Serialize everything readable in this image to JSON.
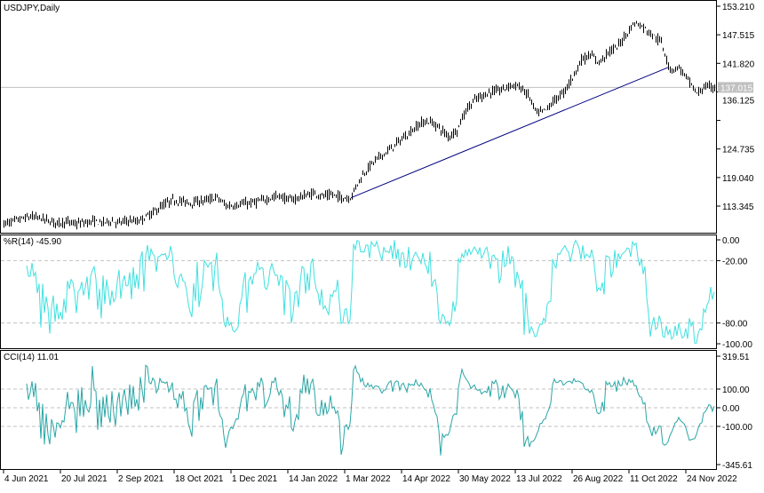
{
  "symbol_label": "USDJPY,Daily",
  "current_price_label": "137.015",
  "colors": {
    "bars": "#000000",
    "wr": "#40e0e0",
    "cci": "#2aa6a6",
    "trendline": "#000080",
    "price_line": "#c0c0c0",
    "price_tag_bg": "#c0c0c0",
    "grid_dash": "#c0c0c0"
  },
  "chart_data": [
    {
      "type": "bar",
      "subtype": "ohlc",
      "title": "USDJPY,Daily",
      "x_tick_labels": [
        "4 Jun 2021",
        "20 Jul 2021",
        "2 Sep 2021",
        "18 Oct 2021",
        "1 Dec 2021",
        "14 Jan 2022",
        "1 Mar 2022",
        "14 Apr 2022",
        "30 May 2022",
        "13 Jul 2022",
        "26 Aug 2022",
        "11 Oct 2022",
        "24 Nov 2022"
      ],
      "y_tick_labels": [
        "153.210",
        "147.515",
        "141.820",
        "136.125",
        "124.735",
        "119.040",
        "113.345"
      ],
      "y_ticks": [
        153.21,
        147.515,
        141.82,
        136.125,
        130.43,
        124.735,
        119.04,
        113.345
      ],
      "ylim": [
        107.3,
        154.4
      ],
      "weekly_closes": [
        109.8,
        110.3,
        110.8,
        111.2,
        111.0,
        110.4,
        110.0,
        110.2,
        109.8,
        110.0,
        110.3,
        110.0,
        110.4,
        110.0,
        110.5,
        110.2,
        111.2,
        112.3,
        113.6,
        114.5,
        114.3,
        114.0,
        114.3,
        114.6,
        115.1,
        113.4,
        113.5,
        113.8,
        114.0,
        114.4,
        115.0,
        115.4,
        114.6,
        114.9,
        115.5,
        115.9,
        115.3,
        115.6,
        115.0,
        115.0,
        118.5,
        121.0,
        122.8,
        124.0,
        125.5,
        127.0,
        128.5,
        130.0,
        130.2,
        129.0,
        127.2,
        128.5,
        132.5,
        134.5,
        135.5,
        136.2,
        136.5,
        137.5,
        137.2,
        135.5,
        131.8,
        132.5,
        134.5,
        136.0,
        139.0,
        142.5,
        143.5,
        142.0,
        144.0,
        145.0,
        147.5,
        150.0,
        149.0,
        147.5,
        146.0,
        140.5,
        141.0,
        138.5,
        135.8,
        137.2,
        137.0
      ],
      "current_price": 137.015,
      "trendline": {
        "from": {
          "date": "1 Mar 2022",
          "price": 115.0
        },
        "to": {
          "date": "21 Oct 2022",
          "price": 141.0
        }
      }
    },
    {
      "type": "line",
      "title": "%R(14) -45.90",
      "series": [
        {
          "name": "%R(14)",
          "last": -45.9
        }
      ],
      "y_tick_labels": [
        "0.00",
        "-20.00",
        "-80.00",
        "-100.00"
      ],
      "ylim": [
        -100,
        0
      ],
      "levels": [
        -20,
        -80
      ]
    },
    {
      "type": "line",
      "title": "CCI(14) 11.01",
      "series": [
        {
          "name": "CCI(14)",
          "last": 11.01
        }
      ],
      "y_tick_labels": [
        "319.51",
        "100.00",
        "0.00",
        "-100.00",
        "-345.61"
      ],
      "ylim": [
        -345.61,
        319.51
      ],
      "levels": [
        100,
        0,
        -100
      ]
    }
  ]
}
